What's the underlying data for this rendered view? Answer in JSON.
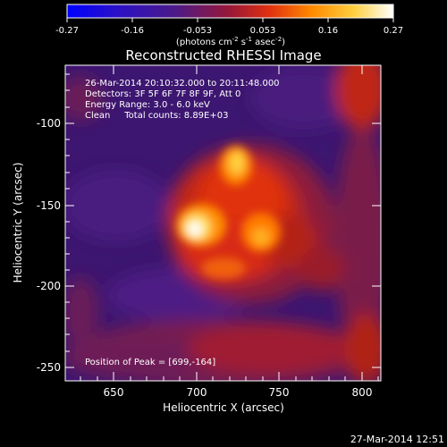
{
  "colorbar": {
    "ticks": [
      "-0.27",
      "-0.16",
      "-0.053",
      "0.053",
      "0.16",
      "0.27"
    ],
    "units_prefix": "(photons cm",
    "units_exp1": "-2",
    "units_mid": " s",
    "units_exp2": "-1",
    "units_mid2": " asec",
    "units_exp3": "-2",
    "units_suffix": ")",
    "colors": [
      "#0000ff",
      "#4b1a88",
      "#8f1a58",
      "#e03010",
      "#ff8a00",
      "#ffd040",
      "#ffffff"
    ]
  },
  "title": "Reconstructed RHESSI Image",
  "info": {
    "line1": "26-Mar-2014 20:10:32.000 to 20:11:48.000",
    "line2": "Detectors: 3F 5F 6F 7F 8F 9F, Att 0",
    "line3": "Energy Range: 3.0 - 6.0 keV",
    "line4": "Clean     Total counts: 8.89E+03",
    "peak": "Position of Peak = [699,-164]"
  },
  "axes": {
    "x_label": "Heliocentric X (arcsec)",
    "y_label": "Heliocentric Y (arcsec)",
    "x_ticks": [
      "650",
      "700",
      "750",
      "800"
    ],
    "y_ticks": [
      "-100",
      "-150",
      "-200",
      "-250"
    ]
  },
  "image": {
    "x_range": [
      622,
      812
    ],
    "y_range": [
      -72,
      -262
    ],
    "colormap": "rhessi red-temperature",
    "peak_position": [
      699,
      -164
    ]
  },
  "timestamp": "27-Mar-2014 12:51"
}
